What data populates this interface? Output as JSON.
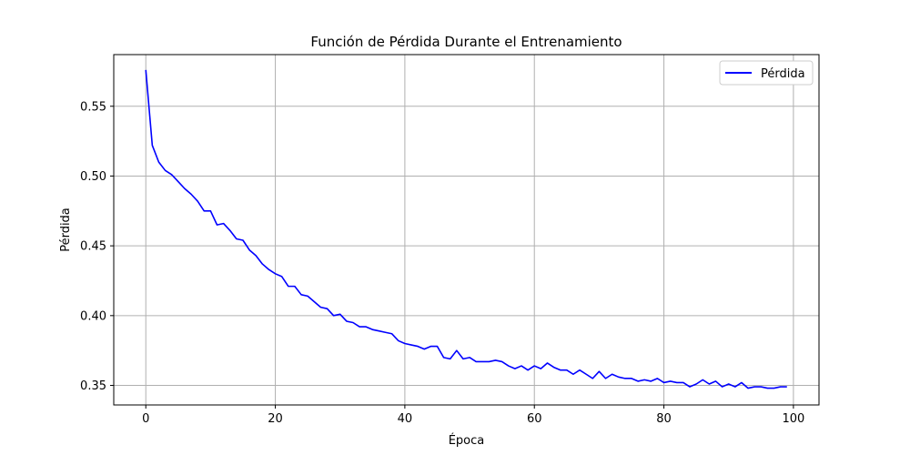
{
  "chart_data": {
    "type": "line",
    "title": "Función de Pérdida Durante el Entrenamiento",
    "xlabel": "Época",
    "ylabel": "Pérdida",
    "xlim": [
      -4.95,
      103.95
    ],
    "ylim": [
      0.336,
      0.587
    ],
    "xticks": [
      0,
      20,
      40,
      60,
      80,
      100
    ],
    "yticks": [
      0.35,
      0.4,
      0.45,
      0.5,
      0.55
    ],
    "xtick_labels": [
      "0",
      "20",
      "40",
      "60",
      "80",
      "100"
    ],
    "ytick_labels": [
      "0.35",
      "0.40",
      "0.45",
      "0.50",
      "0.55"
    ],
    "grid": true,
    "legend_position": "top-right",
    "series": [
      {
        "name": "Pérdida",
        "color": "#0000ff",
        "x": [
          0,
          1,
          2,
          3,
          4,
          5,
          6,
          7,
          8,
          9,
          10,
          11,
          12,
          13,
          14,
          15,
          16,
          17,
          18,
          19,
          20,
          21,
          22,
          23,
          24,
          25,
          26,
          27,
          28,
          29,
          30,
          31,
          32,
          33,
          34,
          35,
          36,
          37,
          38,
          39,
          40,
          41,
          42,
          43,
          44,
          45,
          46,
          47,
          48,
          49,
          50,
          51,
          52,
          53,
          54,
          55,
          56,
          57,
          58,
          59,
          60,
          61,
          62,
          63,
          64,
          65,
          66,
          67,
          68,
          69,
          70,
          71,
          72,
          73,
          74,
          75,
          76,
          77,
          78,
          79,
          80,
          81,
          82,
          83,
          84,
          85,
          86,
          87,
          88,
          89,
          90,
          91,
          92,
          93,
          94,
          95,
          96,
          97,
          98,
          99
        ],
        "values": [
          0.576,
          0.522,
          0.51,
          0.504,
          0.501,
          0.496,
          0.491,
          0.487,
          0.482,
          0.475,
          0.475,
          0.465,
          0.466,
          0.461,
          0.455,
          0.454,
          0.447,
          0.443,
          0.437,
          0.433,
          0.43,
          0.428,
          0.421,
          0.421,
          0.415,
          0.414,
          0.41,
          0.406,
          0.405,
          0.4,
          0.401,
          0.396,
          0.395,
          0.392,
          0.392,
          0.39,
          0.389,
          0.388,
          0.387,
          0.382,
          0.38,
          0.379,
          0.378,
          0.376,
          0.378,
          0.378,
          0.37,
          0.369,
          0.375,
          0.369,
          0.37,
          0.367,
          0.367,
          0.367,
          0.368,
          0.367,
          0.364,
          0.362,
          0.364,
          0.361,
          0.364,
          0.362,
          0.366,
          0.363,
          0.361,
          0.361,
          0.358,
          0.361,
          0.358,
          0.355,
          0.36,
          0.355,
          0.358,
          0.356,
          0.355,
          0.355,
          0.353,
          0.354,
          0.353,
          0.355,
          0.352,
          0.353,
          0.352,
          0.352,
          0.349,
          0.351,
          0.354,
          0.351,
          0.353,
          0.349,
          0.351,
          0.349,
          0.352,
          0.348,
          0.349,
          0.349,
          0.348,
          0.348,
          0.349,
          0.349
        ]
      }
    ]
  }
}
